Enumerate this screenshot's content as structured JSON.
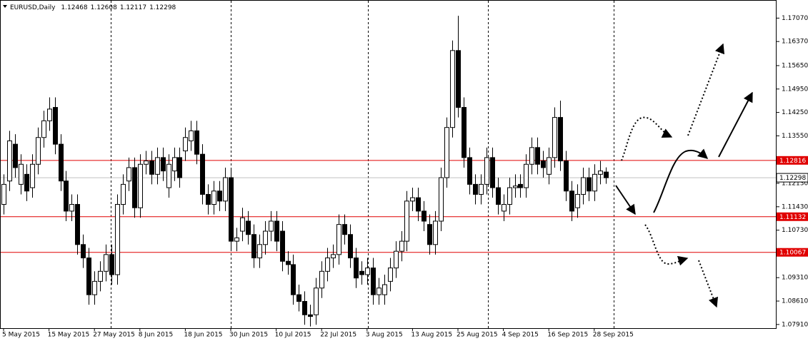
{
  "chart_data": {
    "type": "candlestick",
    "title": "EURUSD,Daily",
    "categories": [
      "5 May 2015",
      null,
      null,
      null,
      null,
      null,
      null,
      null,
      "15 May 2015",
      null,
      null,
      null,
      null,
      null,
      null,
      null,
      "27 May 2015",
      null,
      null,
      null,
      null,
      null,
      null,
      null,
      "8 Jun 2015",
      null,
      null,
      null,
      null,
      null,
      null,
      null,
      "18 Jun 2015",
      null,
      null,
      null,
      null,
      null,
      null,
      null,
      "30 Jun 2015",
      null,
      null,
      null,
      null,
      null,
      null,
      null,
      "10 Jul 2015",
      null,
      null,
      null,
      null,
      null,
      null,
      null,
      "22 Jul 2015",
      null,
      null,
      null,
      null,
      null,
      null,
      null,
      "3 Aug 2015",
      null,
      null,
      null,
      null,
      null,
      null,
      null,
      "13 Aug 2015",
      null,
      null,
      null,
      null,
      null,
      null,
      null,
      "25 Aug 2015",
      null,
      null,
      null,
      null,
      null,
      null,
      null,
      "4 Sep 2015",
      null,
      null,
      null,
      null,
      null,
      null,
      null,
      "16 Sep 2015",
      null,
      null,
      null,
      null,
      null,
      null,
      null,
      "28 Sep 2015",
      null,
      null
    ],
    "open": [
      1.115,
      1.122,
      1.133,
      1.121,
      1.124,
      1.12,
      1.127,
      1.135,
      1.14,
      1.144,
      1.133,
      1.122,
      1.113,
      1.115,
      1.103,
      1.099,
      1.088,
      1.092,
      1.095,
      1.1,
      1.094,
      1.115,
      1.122,
      1.126,
      1.114,
      1.127,
      1.128,
      1.124,
      1.129,
      1.12,
      1.125,
      1.129,
      1.131,
      1.134,
      1.137,
      1.13,
      1.118,
      1.115,
      1.119,
      1.116,
      1.123,
      1.104,
      1.107,
      1.11,
      1.106,
      1.099,
      1.103,
      1.107,
      1.11,
      1.107,
      1.098,
      1.097,
      1.088,
      1.086,
      1.082,
      1.082,
      1.09,
      1.095,
      1.099,
      1.1,
      1.109,
      1.106,
      1.099,
      1.095,
      1.094,
      1.096,
      1.088,
      1.088,
      1.092,
      1.096,
      1.101,
      1.104,
      1.116,
      1.117,
      1.113,
      1.109,
      1.103,
      1.11,
      1.123,
      1.138,
      1.161,
      1.144,
      1.129,
      1.121,
      1.118,
      1.121,
      1.129,
      1.12,
      1.113,
      1.115,
      1.12,
      1.121,
      1.12,
      1.127,
      1.132,
      1.128,
      1.124,
      1.129,
      1.141,
      1.128,
      1.119,
      1.114,
      1.118,
      1.123,
      1.119,
      1.124,
      1.12468
    ],
    "high": [
      1.124,
      1.137,
      1.136,
      1.13,
      1.127,
      1.13,
      1.138,
      1.143,
      1.147,
      1.147,
      1.136,
      1.125,
      1.118,
      1.118,
      1.106,
      1.102,
      1.095,
      1.098,
      1.103,
      1.103,
      1.118,
      1.124,
      1.129,
      1.129,
      1.13,
      1.131,
      1.131,
      1.132,
      1.132,
      1.13,
      1.132,
      1.132,
      1.138,
      1.14,
      1.14,
      1.133,
      1.121,
      1.122,
      1.122,
      1.126,
      1.126,
      1.108,
      1.114,
      1.113,
      1.109,
      1.106,
      1.11,
      1.113,
      1.113,
      1.11,
      1.101,
      1.1,
      1.091,
      1.089,
      1.085,
      1.093,
      1.098,
      1.102,
      1.103,
      1.112,
      1.112,
      1.109,
      1.102,
      1.098,
      1.099,
      1.099,
      1.093,
      1.094,
      1.099,
      1.104,
      1.107,
      1.119,
      1.12,
      1.12,
      1.116,
      1.112,
      1.113,
      1.126,
      1.141,
      1.164,
      1.1714,
      1.147,
      1.132,
      1.124,
      1.124,
      1.132,
      1.132,
      1.123,
      1.118,
      1.123,
      1.124,
      1.124,
      1.13,
      1.135,
      1.135,
      1.131,
      1.132,
      1.144,
      1.146,
      1.131,
      1.122,
      1.121,
      1.126,
      1.126,
      1.127,
      1.128,
      1.12608
    ],
    "low": [
      1.112,
      1.119,
      1.123,
      1.118,
      1.116,
      1.117,
      1.124,
      1.132,
      1.137,
      1.13,
      1.119,
      1.11,
      1.11,
      1.1,
      1.096,
      1.085,
      1.085,
      1.089,
      1.092,
      1.091,
      1.091,
      1.112,
      1.119,
      1.111,
      1.111,
      1.124,
      1.121,
      1.121,
      1.122,
      1.117,
      1.122,
      1.12,
      1.128,
      1.131,
      1.127,
      1.115,
      1.112,
      1.112,
      1.113,
      1.113,
      1.101,
      1.101,
      1.104,
      1.103,
      1.096,
      1.096,
      1.1,
      1.104,
      1.101,
      1.095,
      1.094,
      1.085,
      1.083,
      1.079,
      1.0785,
      1.079,
      1.087,
      1.092,
      1.096,
      1.097,
      1.103,
      1.096,
      1.09,
      1.091,
      1.091,
      1.085,
      1.085,
      1.085,
      1.089,
      1.093,
      1.098,
      1.101,
      1.113,
      1.11,
      1.107,
      1.1,
      1.1,
      1.107,
      1.12,
      1.135,
      1.141,
      1.126,
      1.118,
      1.115,
      1.115,
      1.118,
      1.117,
      1.112,
      1.11,
      1.112,
      1.117,
      1.117,
      1.117,
      1.124,
      1.124,
      1.123,
      1.121,
      1.126,
      1.125,
      1.116,
      1.11,
      1.111,
      1.115,
      1.116,
      1.116,
      1.121,
      1.12117
    ],
    "close": [
      1.121,
      1.134,
      1.126,
      1.127,
      1.119,
      1.127,
      1.135,
      1.14,
      1.1435,
      1.133,
      1.122,
      1.113,
      1.115,
      1.103,
      1.099,
      1.088,
      1.092,
      1.095,
      1.1,
      1.094,
      1.115,
      1.121,
      1.126,
      1.114,
      1.127,
      1.128,
      1.124,
      1.129,
      1.125,
      1.127,
      1.129,
      1.123,
      1.135,
      1.137,
      1.13,
      1.118,
      1.115,
      1.119,
      1.116,
      1.123,
      1.104,
      1.105,
      1.111,
      1.106,
      1.099,
      1.103,
      1.107,
      1.11,
      1.104,
      1.098,
      1.097,
      1.088,
      1.086,
      1.082,
      1.0815,
      1.09,
      1.095,
      1.099,
      1.1,
      1.109,
      1.106,
      1.099,
      1.093,
      1.094,
      1.096,
      1.088,
      1.09,
      1.091,
      1.096,
      1.101,
      1.104,
      1.116,
      1.117,
      1.113,
      1.11,
      1.103,
      1.11,
      1.123,
      1.138,
      1.161,
      1.144,
      1.129,
      1.121,
      1.118,
      1.121,
      1.129,
      1.12,
      1.115,
      1.115,
      1.12,
      1.1205,
      1.12,
      1.127,
      1.132,
      1.127,
      1.126,
      1.129,
      1.141,
      1.128,
      1.119,
      1.113,
      1.118,
      1.123,
      1.119,
      1.124,
      1.125,
      1.12298
    ],
    "ylim": [
      1.078,
      1.1759
    ],
    "yticks": [
      {
        "value": 1.1707,
        "label": "1.17070"
      },
      {
        "value": 1.1637,
        "label": "1.16370"
      },
      {
        "value": 1.1565,
        "label": "1.15650"
      },
      {
        "value": 1.1495,
        "label": "1.14950"
      },
      {
        "value": 1.1425,
        "label": "1.14250"
      },
      {
        "value": 1.1355,
        "label": "1.13550"
      },
      {
        "value": 1.1213,
        "label": "1.12130"
      },
      {
        "value": 1.1143,
        "label": "1.11430"
      },
      {
        "value": 1.1073,
        "label": "1.10730"
      },
      {
        "value": 1.0931,
        "label": "1.09310"
      },
      {
        "value": 1.0861,
        "label": "1.08610"
      },
      {
        "value": 1.0791,
        "label": "1.07910"
      }
    ],
    "hlines": [
      1.12816,
      1.11132,
      1.10067
    ],
    "hline_color": "#e00000",
    "price_line_color": "#c0c0c0"
  }
}
